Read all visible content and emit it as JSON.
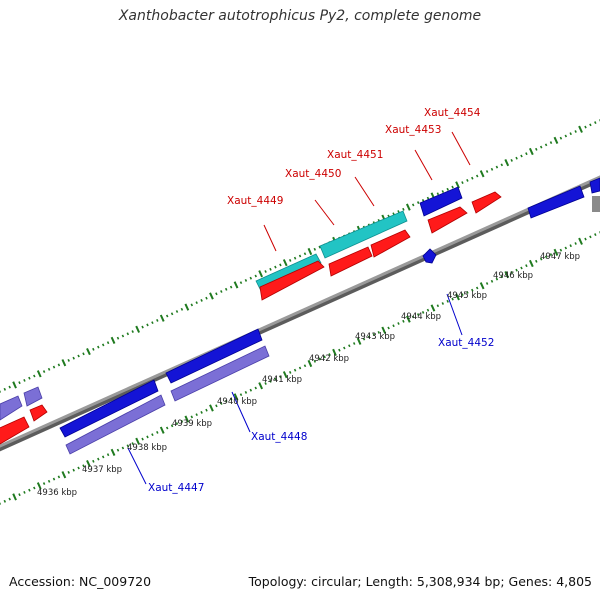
{
  "title": "Xanthobacter autotrophicus Py2, complete genome",
  "footer": {
    "accession": "Accession: NC_009720",
    "summary": "Topology: circular; Length: 5,308,934 bp; Genes: 4,805"
  },
  "colors": {
    "backbone": "#8a8a8a",
    "backbone_shadow": "#5c5c5c",
    "tick": "#1f7a1f",
    "forward_gene": "#ff1a1a",
    "forward_gene_alt": "#22c4c4",
    "reverse_gene": "#1414d6",
    "reverse_gene_alt": "#7b6fd6",
    "forward_label": "#cc0000",
    "reverse_label": "#0000cc",
    "kbp_label": "#222222"
  },
  "kbp_labels": [
    "4936 kbp",
    "4937 kbp",
    "4938 kbp",
    "4939 kbp",
    "4940 kbp",
    "4941 kbp",
    "4942 kbp",
    "4943 kbp",
    "4944 kbp",
    "4945 kbp",
    "4946 kbp",
    "4947 kbp"
  ],
  "forward_gene_labels": [
    "Xaut_4449",
    "Xaut_4450",
    "Xaut_4451",
    "Xaut_4453",
    "Xaut_4454"
  ],
  "reverse_gene_labels": [
    "Xaut_4447",
    "Xaut_4448",
    "Xaut_4452"
  ]
}
